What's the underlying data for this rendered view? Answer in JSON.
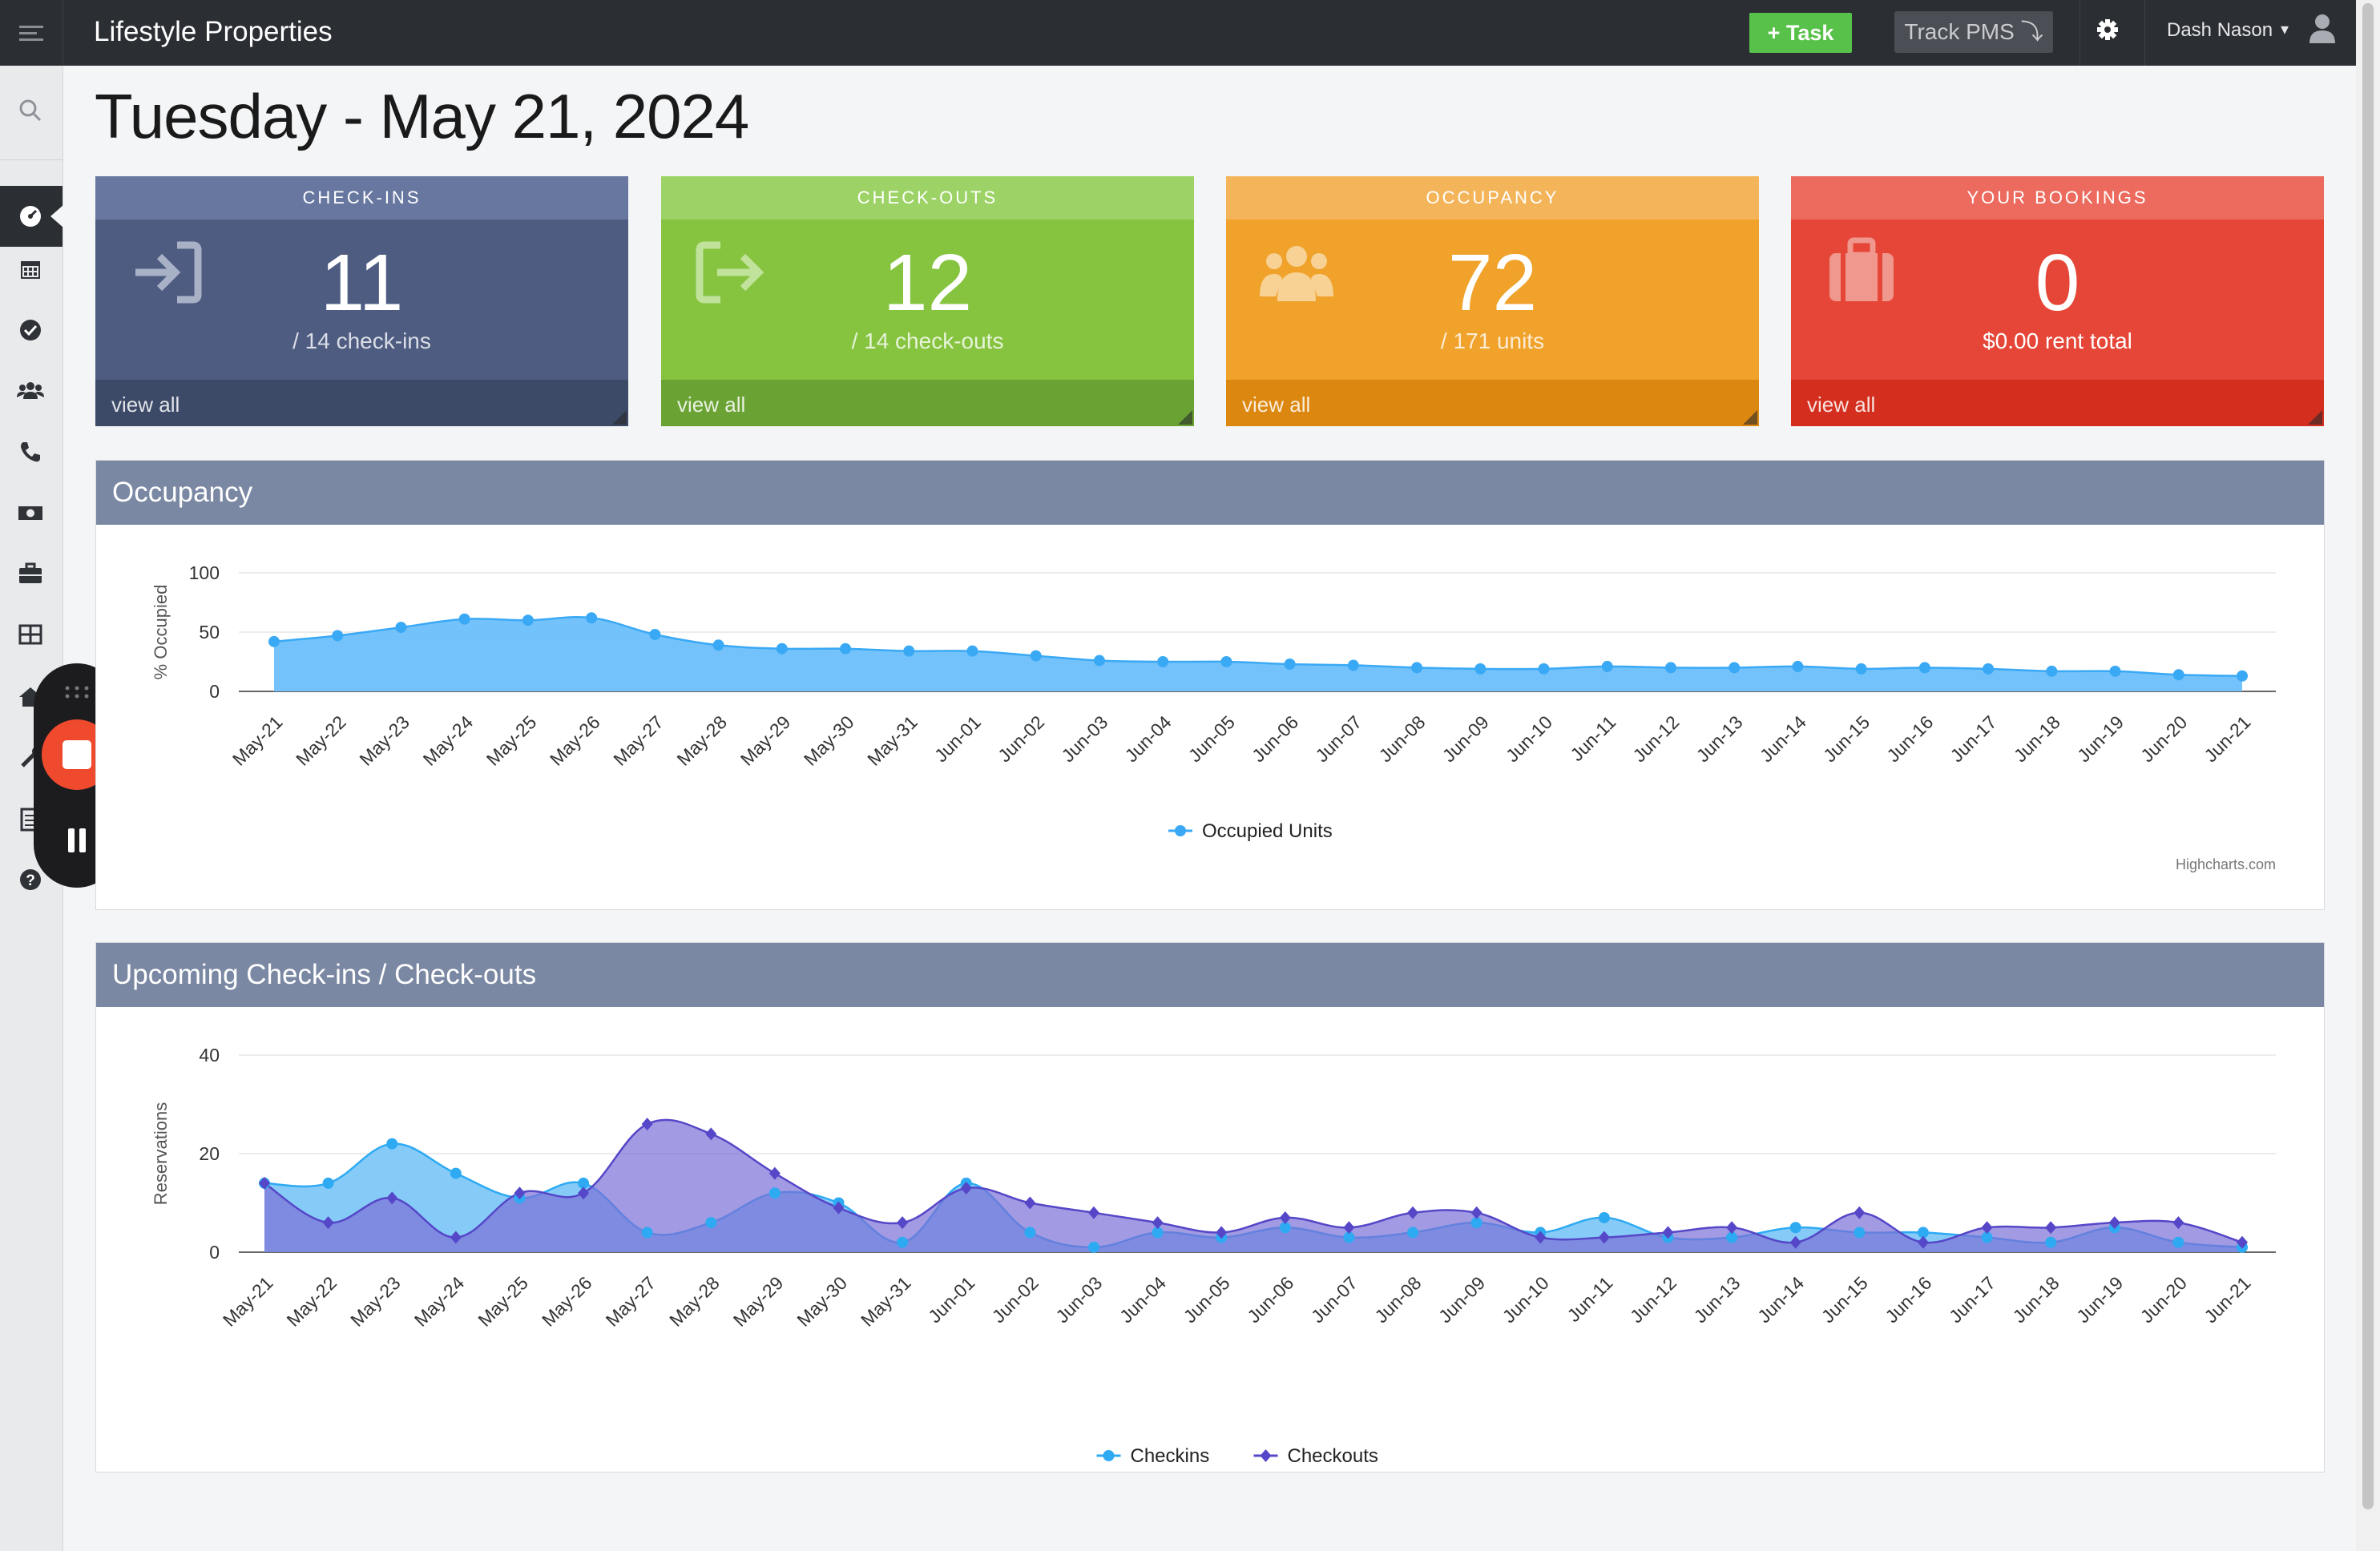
{
  "app": {
    "title": "Lifestyle Properties"
  },
  "header": {
    "task_label": "Task",
    "track_label": "Track PMS",
    "user_name": "Dash Nason"
  },
  "page": {
    "date": "Tuesday - May 21, 2024"
  },
  "cards": [
    {
      "title": "CHECK-INS",
      "value": "11",
      "sub": "/ 14 check-ins",
      "link": "view all",
      "color": "#4d5c80",
      "header_color": "#6777a0",
      "footer_color": "#3c4967",
      "icon": "sign-in-icon"
    },
    {
      "title": "CHECK-OUTS",
      "value": "12",
      "sub": "/ 14 check-outs",
      "link": "view all",
      "color": "#86c440",
      "header_color": "#9dd366",
      "footer_color": "#6aa334",
      "icon": "sign-out-icon"
    },
    {
      "title": "OCCUPANCY",
      "value": "72",
      "sub": "/ 171 units",
      "link": "view all",
      "color": "#f0a22b",
      "header_color": "#f4b55a",
      "footer_color": "#dc870f",
      "icon": "users-icon"
    },
    {
      "title": "YOUR BOOKINGS",
      "value": "0",
      "sub": "$0.00 rent total",
      "link": "view all",
      "color": "#e64637",
      "header_color": "#ec6b5e",
      "footer_color": "#d42f1e",
      "icon": "suitcase-icon"
    }
  ],
  "occupancy_panel": {
    "title": "Occupancy",
    "credit": "Highcharts.com"
  },
  "upcoming_panel": {
    "title": "Upcoming Check-ins / Check-outs"
  },
  "chart_data": [
    {
      "type": "area",
      "title": "",
      "xlabel": "",
      "ylabel": "% Occupied",
      "ylim": [
        0,
        100
      ],
      "yticks": [
        0,
        50,
        100
      ],
      "grid": true,
      "legend": "bottom-center",
      "categories": [
        "May-21",
        "May-22",
        "May-23",
        "May-24",
        "May-25",
        "May-26",
        "May-27",
        "May-28",
        "May-29",
        "May-30",
        "May-31",
        "Jun-01",
        "Jun-02",
        "Jun-03",
        "Jun-04",
        "Jun-05",
        "Jun-06",
        "Jun-07",
        "Jun-08",
        "Jun-09",
        "Jun-10",
        "Jun-11",
        "Jun-12",
        "Jun-13",
        "Jun-14",
        "Jun-15",
        "Jun-16",
        "Jun-17",
        "Jun-18",
        "Jun-19",
        "Jun-20",
        "Jun-21"
      ],
      "series": [
        {
          "name": "Occupied Units",
          "color": "#3aa9f5",
          "fill": "#6cbffb",
          "values": [
            42,
            47,
            54,
            61,
            60,
            62,
            48,
            39,
            36,
            36,
            34,
            34,
            30,
            26,
            25,
            25,
            23,
            22,
            20,
            19,
            19,
            21,
            20,
            20,
            21,
            19,
            20,
            19,
            17,
            17,
            14,
            13
          ]
        }
      ]
    },
    {
      "type": "area",
      "title": "",
      "xlabel": "",
      "ylabel": "Reservations",
      "ylim": [
        0,
        40
      ],
      "yticks": [
        0,
        20,
        40
      ],
      "grid": true,
      "legend": "bottom-center",
      "categories": [
        "May-21",
        "May-22",
        "May-23",
        "May-24",
        "May-25",
        "May-26",
        "May-27",
        "May-28",
        "May-29",
        "May-30",
        "May-31",
        "Jun-01",
        "Jun-02",
        "Jun-03",
        "Jun-04",
        "Jun-05",
        "Jun-06",
        "Jun-07",
        "Jun-08",
        "Jun-09",
        "Jun-10",
        "Jun-11",
        "Jun-12",
        "Jun-13",
        "Jun-14",
        "Jun-15",
        "Jun-16",
        "Jun-17",
        "Jun-18",
        "Jun-19",
        "Jun-20",
        "Jun-21"
      ],
      "series": [
        {
          "name": "Checkins",
          "color": "#2eaaf2",
          "fill": "#7fc8f8",
          "values": [
            14,
            14,
            22,
            16,
            11,
            14,
            4,
            6,
            12,
            10,
            2,
            14,
            4,
            1,
            4,
            3,
            5,
            3,
            4,
            6,
            4,
            7,
            3,
            3,
            5,
            4,
            4,
            3,
            2,
            5,
            2,
            1
          ]
        },
        {
          "name": "Checkouts",
          "color": "#5547c8",
          "fill": "#7a6fd6",
          "values": [
            14,
            6,
            11,
            3,
            12,
            12,
            26,
            24,
            16,
            9,
            6,
            13,
            10,
            8,
            6,
            4,
            7,
            5,
            8,
            8,
            3,
            3,
            4,
            5,
            2,
            8,
            2,
            5,
            5,
            6,
            6,
            2
          ]
        }
      ]
    }
  ]
}
